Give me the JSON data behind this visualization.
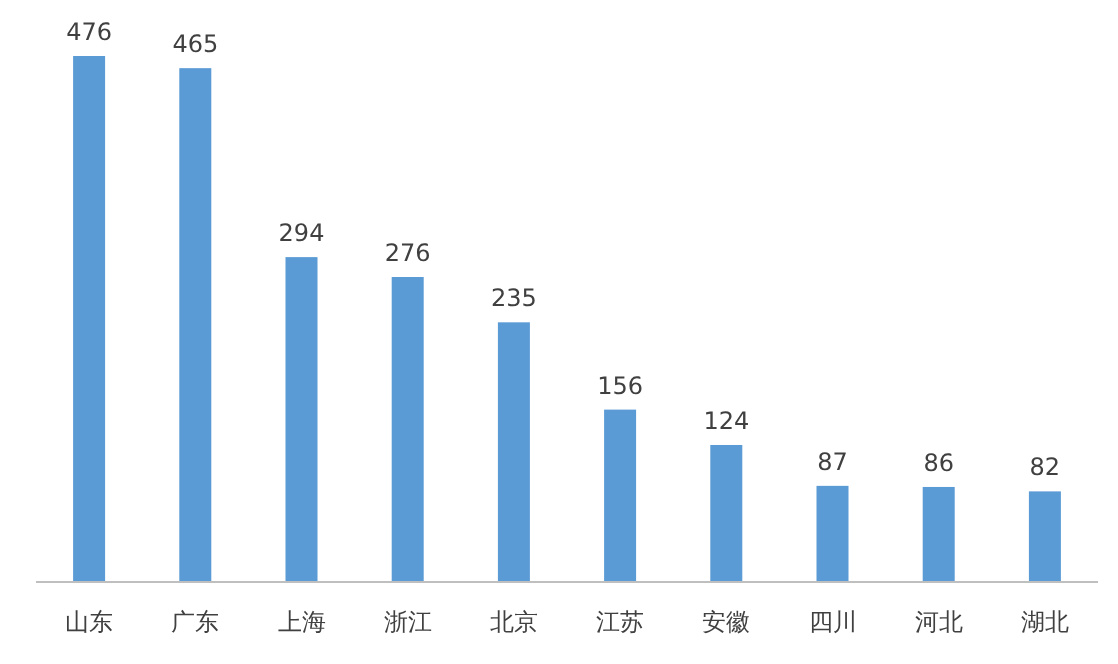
{
  "chart_data": {
    "type": "bar",
    "categories": [
      "山东",
      "广东",
      "上海",
      "浙江",
      "北京",
      "江苏",
      "安徽",
      "四川",
      "河北",
      "湖北"
    ],
    "values": [
      476,
      465,
      294,
      276,
      235,
      156,
      124,
      87,
      86,
      82
    ],
    "color": "#5b9bd5",
    "data_labels": true
  }
}
